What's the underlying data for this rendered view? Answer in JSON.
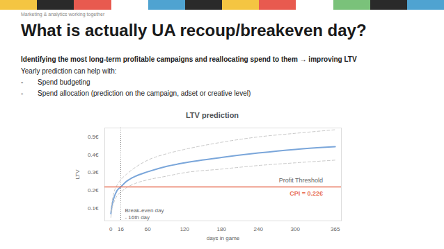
{
  "slide": {
    "kicker": "Marketing & analytics working together",
    "title": "What is actually UA recoup/breakeven day?",
    "lead": "Identifying the most long-term profitable campaigns and reallocating spend to them → improving LTV",
    "intro": "Yearly prediction can help with:",
    "bullets": [
      "Spend budgeting",
      "Spend allocation (prediction on the campaign, adset or creative level)"
    ]
  },
  "chart_data": {
    "type": "line",
    "title": "LTV prediction",
    "x_label": "days in game",
    "y_label": "LTV",
    "x": [
      0,
      2,
      5,
      10,
      16,
      25,
      40,
      60,
      90,
      120,
      180,
      240,
      300,
      365
    ],
    "series": [
      {
        "color": "#7aa6da",
        "line_style": "solid",
        "values": [
          0.07,
          0.12,
          0.16,
          0.2,
          0.22,
          0.25,
          0.28,
          0.305,
          0.335,
          0.355,
          0.385,
          0.41,
          0.43,
          0.445
        ]
      },
      {
        "color": "#c8c8c8",
        "line_style": "dashed",
        "values": [
          0.09,
          0.14,
          0.19,
          0.23,
          0.26,
          0.29,
          0.33,
          0.37,
          0.405,
          0.43,
          0.47,
          0.5,
          0.52,
          0.54
        ]
      },
      {
        "color": "#c8c8c8",
        "line_style": "dashed",
        "values": [
          0.05,
          0.1,
          0.135,
          0.17,
          0.19,
          0.215,
          0.24,
          0.26,
          0.28,
          0.3,
          0.32,
          0.34,
          0.355,
          0.37
        ]
      }
    ],
    "xlim": [
      -10,
      375
    ],
    "ylim": [
      0.03,
      0.55
    ],
    "xticks": [
      0,
      16,
      60,
      120,
      180,
      240,
      300,
      365
    ],
    "yticks": [
      {
        "value": 0.1,
        "label": "0.1€"
      },
      {
        "value": 0.2,
        "label": "0.2€"
      },
      {
        "value": 0.3,
        "label": "0.3€"
      },
      {
        "value": 0.4,
        "label": "0.4€"
      },
      {
        "value": 0.5,
        "label": "0.5€"
      }
    ],
    "grid": false,
    "threshold": {
      "value": 0.22,
      "color": "#e8735a",
      "label": "Profit Threshold",
      "value_label": "CPI = 0.22€",
      "label_x": 345
    },
    "breakeven": {
      "value": 16,
      "label": "Break-even day",
      "sublabel": "- 16th day",
      "label_y": 0.07
    }
  }
}
